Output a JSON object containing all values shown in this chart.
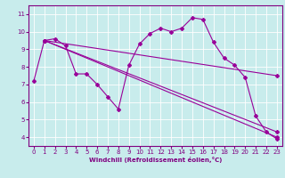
{
  "xlabel": "Windchill (Refroidissement éolien,°C)",
  "bg_color": "#c8ecec",
  "grid_color": "#ffffff",
  "line_color": "#990099",
  "xlim": [
    -0.5,
    23.5
  ],
  "ylim": [
    3.5,
    11.5
  ],
  "xticks": [
    0,
    1,
    2,
    3,
    4,
    5,
    6,
    7,
    8,
    9,
    10,
    11,
    12,
    13,
    14,
    15,
    16,
    17,
    18,
    19,
    20,
    21,
    22,
    23
  ],
  "yticks": [
    4,
    5,
    6,
    7,
    8,
    9,
    10,
    11
  ],
  "line_jagged": {
    "x": [
      1,
      2,
      3,
      4,
      5,
      6,
      7,
      8,
      9,
      10,
      11,
      12,
      13,
      14,
      15,
      16,
      17,
      18,
      19,
      20,
      21,
      22,
      23
    ],
    "y": [
      9.5,
      9.6,
      9.2,
      7.6,
      7.6,
      7.0,
      6.3,
      5.6,
      8.1,
      9.3,
      9.9,
      10.2,
      10.0,
      10.2,
      10.8,
      10.7,
      9.4,
      8.5,
      8.1,
      7.4,
      5.2,
      4.3,
      3.9
    ]
  },
  "line_straight1": {
    "x": [
      0,
      1,
      23
    ],
    "y": [
      7.2,
      9.5,
      7.5
    ]
  },
  "line_straight2": {
    "x": [
      1,
      23
    ],
    "y": [
      9.5,
      4.3
    ]
  },
  "line_straight3": {
    "x": [
      1,
      23
    ],
    "y": [
      9.5,
      4.0
    ]
  }
}
